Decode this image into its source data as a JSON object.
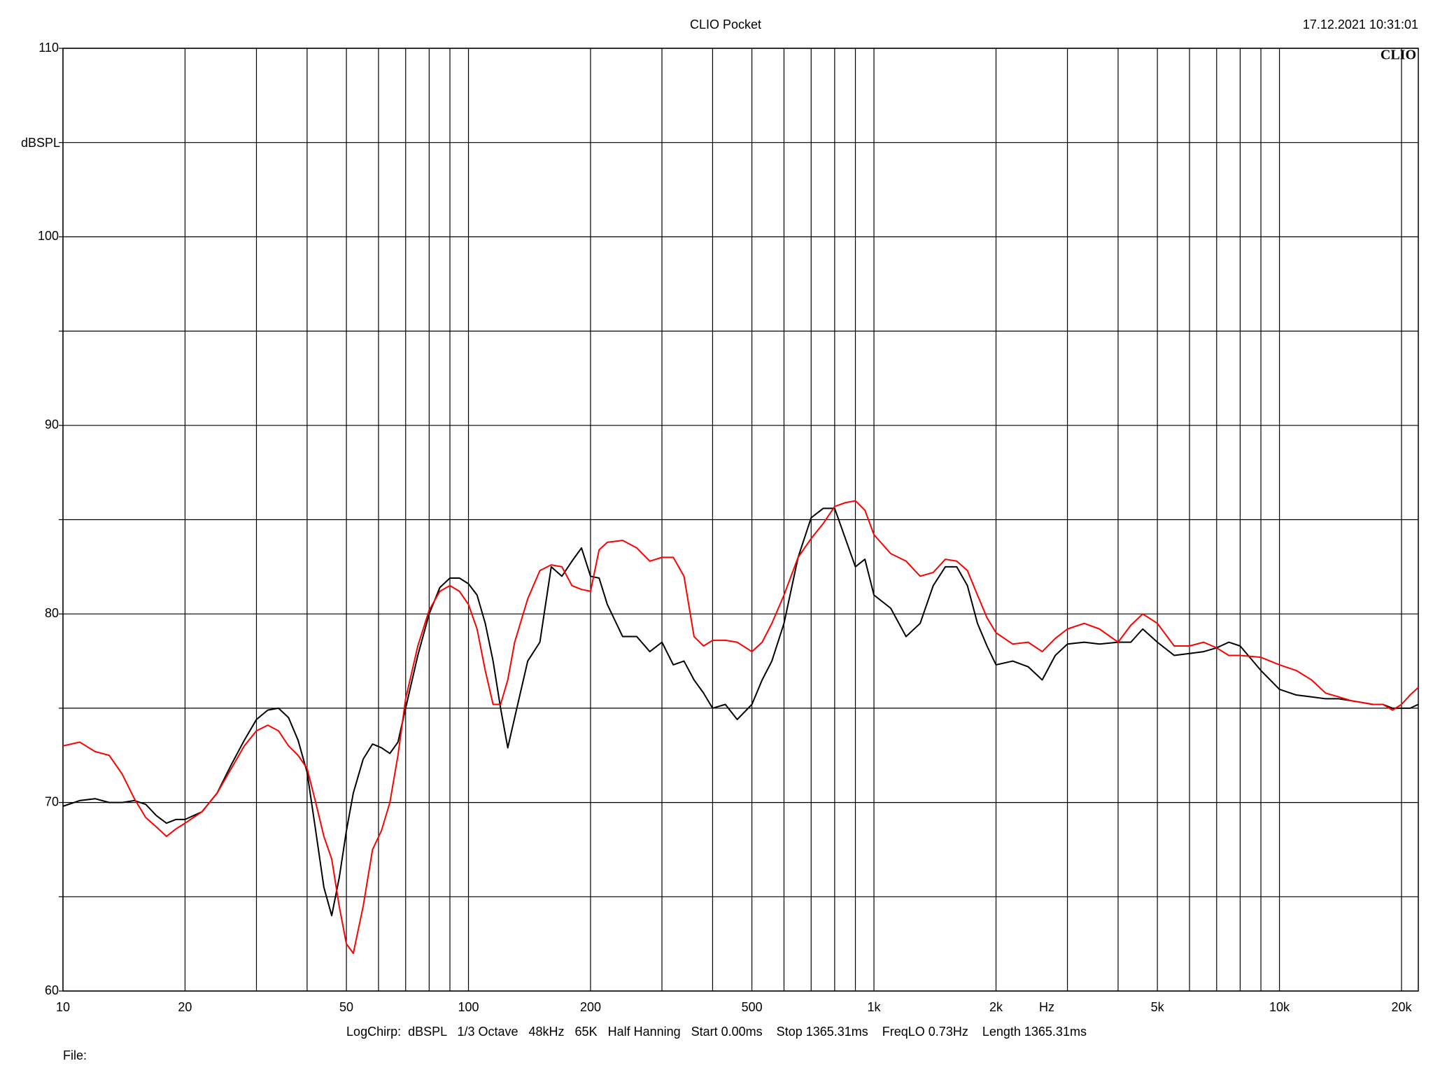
{
  "chart_data": {
    "type": "line",
    "title": "CLIO Pocket",
    "timestamp": "17.12.2021 10:31:01",
    "logo": "CLIO",
    "y_label": "dBSPL",
    "x_label": "Hz",
    "footer": "LogChirp:  dBSPL   1/3 Octave   48kHz   65K   Half Hanning   Start 0.00ms    Stop 1365.31ms    FreqLO 0.73Hz    Length 1365.31ms",
    "file_label": "File:",
    "log_x": true,
    "grid": true,
    "xlim": [
      10,
      22000
    ],
    "ylim": [
      60,
      110
    ],
    "xticks": [
      10,
      20,
      50,
      100,
      200,
      500,
      {
        "value": 1000,
        "label": "1k"
      },
      {
        "value": 2000,
        "label": "2k"
      },
      {
        "value": 5000,
        "label": "5k"
      },
      {
        "value": 10000,
        "label": "10k"
      },
      {
        "value": 20000,
        "label": "20k"
      }
    ],
    "x_minor_ticks": [
      30,
      40,
      60,
      70,
      80,
      90,
      300,
      400,
      600,
      700,
      800,
      900,
      3000,
      4000,
      6000,
      7000,
      8000,
      9000
    ],
    "yticks": [
      60,
      70,
      80,
      90,
      100,
      110
    ],
    "y_minor_ticks": [
      65,
      75,
      85,
      95,
      105
    ],
    "x": [
      10,
      11,
      12,
      13,
      14,
      15,
      16,
      17,
      18,
      19,
      20,
      22,
      24,
      26,
      28,
      30,
      32,
      34,
      36,
      38,
      40,
      42,
      44,
      46,
      48,
      50,
      52,
      55,
      58,
      61,
      64,
      67,
      70,
      75,
      80,
      85,
      90,
      95,
      100,
      105,
      110,
      115,
      120,
      125,
      130,
      140,
      150,
      160,
      170,
      180,
      190,
      200,
      210,
      220,
      240,
      260,
      280,
      300,
      320,
      340,
      360,
      380,
      400,
      430,
      460,
      500,
      530,
      560,
      600,
      650,
      700,
      750,
      800,
      850,
      900,
      950,
      1000,
      1100,
      1200,
      1300,
      1400,
      1500,
      1600,
      1700,
      1800,
      1900,
      2000,
      2200,
      2400,
      2600,
      2800,
      3000,
      3300,
      3600,
      4000,
      4300,
      4600,
      5000,
      5500,
      6000,
      6500,
      7000,
      7500,
      8000,
      9000,
      10000,
      11000,
      12000,
      13000,
      14000,
      15000,
      16000,
      17000,
      18000,
      19000,
      20000,
      21000,
      22000
    ],
    "series": [
      {
        "color": "#000000",
        "values": [
          69.8,
          70.1,
          70.2,
          70.0,
          70.0,
          70.1,
          69.9,
          69.3,
          68.9,
          69.1,
          69.1,
          69.5,
          70.5,
          72.0,
          73.3,
          74.4,
          74.9,
          75.0,
          74.5,
          73.3,
          71.6,
          68.5,
          65.5,
          64.0,
          66.0,
          68.5,
          70.5,
          72.3,
          73.1,
          72.9,
          72.6,
          73.2,
          75.0,
          77.8,
          80.0,
          81.4,
          81.9,
          81.9,
          81.6,
          81.0,
          79.5,
          77.5,
          75.0,
          72.9,
          74.5,
          77.5,
          78.5,
          82.5,
          82.0,
          82.8,
          83.5,
          82.0,
          81.9,
          80.5,
          78.8,
          78.8,
          78.0,
          78.5,
          77.3,
          77.5,
          76.5,
          75.8,
          75.0,
          75.2,
          74.4,
          75.2,
          76.5,
          77.5,
          79.5,
          83.0,
          85.1,
          85.6,
          85.6,
          84.0,
          82.5,
          82.9,
          81.0,
          80.3,
          78.8,
          79.5,
          81.5,
          82.5,
          82.5,
          81.5,
          79.5,
          78.3,
          77.3,
          77.5,
          77.2,
          76.5,
          77.8,
          78.4,
          78.5,
          78.4,
          78.5,
          78.5,
          79.2,
          78.5,
          77.8,
          77.9,
          78.0,
          78.2,
          78.5,
          78.3,
          77.0,
          76.0,
          75.7,
          75.6,
          75.5,
          75.5,
          75.4,
          75.3,
          75.2,
          75.2,
          75.0,
          75.0,
          75.0,
          75.2
        ]
      },
      {
        "color": "#ff0000",
        "values": [
          73.0,
          73.2,
          72.7,
          72.5,
          71.5,
          70.2,
          69.2,
          68.7,
          68.2,
          68.6,
          68.9,
          69.5,
          70.5,
          71.8,
          73.0,
          73.8,
          74.1,
          73.8,
          73.0,
          72.5,
          71.8,
          70.0,
          68.2,
          67.0,
          64.5,
          62.5,
          62.0,
          64.5,
          67.5,
          68.5,
          70.0,
          72.5,
          75.5,
          78.3,
          80.2,
          81.2,
          81.5,
          81.2,
          80.5,
          79.2,
          77.0,
          75.2,
          75.2,
          76.5,
          78.5,
          80.8,
          82.3,
          82.6,
          82.5,
          81.5,
          81.3,
          81.2,
          83.4,
          83.8,
          83.9,
          83.5,
          82.8,
          83.0,
          83.0,
          82.0,
          78.8,
          78.3,
          78.6,
          78.6,
          78.5,
          78.0,
          78.5,
          79.5,
          81.0,
          83.0,
          84.0,
          84.8,
          85.7,
          85.9,
          86.0,
          85.5,
          84.2,
          83.2,
          82.8,
          82.0,
          82.2,
          82.9,
          82.8,
          82.3,
          81.0,
          79.8,
          79.0,
          78.4,
          78.5,
          78.0,
          78.7,
          79.2,
          79.5,
          79.2,
          78.5,
          79.4,
          80.0,
          79.5,
          78.3,
          78.3,
          78.5,
          78.2,
          77.8,
          77.8,
          77.7,
          77.3,
          77.0,
          76.5,
          75.8,
          75.6,
          75.4,
          75.3,
          75.2,
          75.2,
          74.9,
          75.2,
          75.7,
          76.1
        ]
      }
    ]
  }
}
